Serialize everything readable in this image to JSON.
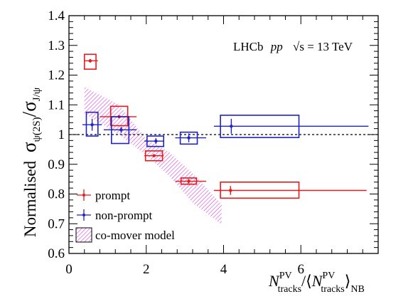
{
  "chart_data": {
    "type": "scatter",
    "ylabel": {
      "main": "Normalised",
      "sym": "σ",
      "sub1": "ψ(2S)",
      "sub2": "J/ψ"
    },
    "xlabel": {
      "N": "N",
      "sub": "tracks",
      "sup": "PV",
      "nb": "NB"
    },
    "annotation": {
      "exp": "LHCb",
      "proc": "pp",
      "sqrt": "√s",
      "energy": "= 13 TeV"
    },
    "xlim": [
      0,
      8
    ],
    "ylim": [
      0.6,
      1.4
    ],
    "xticks": [
      0,
      2,
      4,
      6
    ],
    "yticks": [
      0.6,
      0.7,
      0.8,
      0.9,
      1.0,
      1.1,
      1.2,
      1.3,
      1.4
    ],
    "ytick_labels": [
      "0.6",
      "0.7",
      "0.8",
      "0.9",
      "1",
      "1.1",
      "1.2",
      "1.3",
      "1.4"
    ],
    "reference_line": 1.0,
    "grid": false,
    "legend_position": "bottom-left",
    "colors": {
      "prompt": "#e8191b",
      "non_prompt": "#1f21c8",
      "co_mover": "#d633d6"
    },
    "series": [
      {
        "name": "prompt",
        "color": "#e8191b",
        "points": [
          {
            "x": 0.55,
            "x_lo": 0.4,
            "x_hi": 0.75,
            "y": 1.248,
            "y_err": 0.006,
            "sys_x_lo": 0.4,
            "sys_x_hi": 0.7,
            "sys_lo": 1.22,
            "sys_hi": 1.27
          },
          {
            "x": 1.3,
            "x_lo": 0.8,
            "x_hi": 1.75,
            "y": 1.06,
            "y_err": 0.004,
            "sys_x_lo": 1.08,
            "sys_x_hi": 1.52,
            "sys_lo": 1.03,
            "sys_hi": 1.095
          },
          {
            "x": 2.2,
            "x_lo": 1.95,
            "x_hi": 2.45,
            "y": 0.929,
            "y_err": 0.004,
            "sys_x_lo": 1.98,
            "sys_x_hi": 2.42,
            "sys_lo": 0.912,
            "sys_hi": 0.945
          },
          {
            "x": 3.1,
            "x_lo": 2.75,
            "x_hi": 3.55,
            "y": 0.843,
            "y_err": 0.008,
            "sys_x_lo": 2.9,
            "sys_x_hi": 3.3,
            "sys_lo": 0.833,
            "sys_hi": 0.854
          },
          {
            "x": 4.18,
            "x_lo": 3.75,
            "x_hi": 7.7,
            "y": 0.812,
            "y_err": 0.015,
            "sys_x_lo": 3.92,
            "sys_x_hi": 5.95,
            "sys_lo": 0.786,
            "sys_hi": 0.84
          }
        ]
      },
      {
        "name": "non-prompt",
        "color": "#1f21c8",
        "points": [
          {
            "x": 0.6,
            "x_lo": 0.35,
            "x_hi": 0.85,
            "y": 1.033,
            "y_err": 0.02,
            "sys_x_lo": 0.45,
            "sys_x_hi": 0.75,
            "sys_lo": 0.995,
            "sys_hi": 1.075
          },
          {
            "x": 1.35,
            "x_lo": 0.9,
            "x_hi": 1.75,
            "y": 1.016,
            "y_err": 0.01,
            "sys_x_lo": 1.1,
            "sys_x_hi": 1.55,
            "sys_lo": 0.97,
            "sys_hi": 1.06
          },
          {
            "x": 2.25,
            "x_lo": 1.95,
            "x_hi": 2.45,
            "y": 0.978,
            "y_err": 0.01,
            "sys_x_lo": 2.02,
            "sys_x_hi": 2.45,
            "sys_lo": 0.96,
            "sys_hi": 0.995
          },
          {
            "x": 3.1,
            "x_lo": 2.75,
            "x_hi": 3.55,
            "y": 0.989,
            "y_err": 0.015,
            "sys_x_lo": 2.88,
            "sys_x_hi": 3.32,
            "sys_lo": 0.968,
            "sys_hi": 1.008
          },
          {
            "x": 4.2,
            "x_lo": 3.75,
            "x_hi": 7.75,
            "y": 1.028,
            "y_err": 0.025,
            "sys_x_lo": 3.92,
            "sys_x_hi": 5.95,
            "sys_lo": 0.99,
            "sys_hi": 1.065
          }
        ]
      }
    ],
    "band": {
      "name": "co-mover model",
      "color": "#d633d6",
      "upper": [
        [
          0.4,
          1.16
        ],
        [
          1.3,
          1.1
        ],
        [
          2.0,
          0.985
        ],
        [
          2.6,
          0.94
        ],
        [
          3.2,
          0.87
        ],
        [
          3.95,
          0.765
        ]
      ],
      "lower": [
        [
          0.4,
          1.07
        ],
        [
          1.3,
          1.0
        ],
        [
          2.0,
          0.93
        ],
        [
          2.6,
          0.86
        ],
        [
          3.2,
          0.77
        ],
        [
          3.95,
          0.698
        ]
      ]
    },
    "legend": [
      {
        "label": "prompt",
        "kind": "marker",
        "color": "#e8191b"
      },
      {
        "label": "non-prompt",
        "kind": "marker",
        "color": "#1f21c8"
      },
      {
        "label": "co-mover model",
        "kind": "band",
        "color": "#d633d6"
      }
    ]
  }
}
